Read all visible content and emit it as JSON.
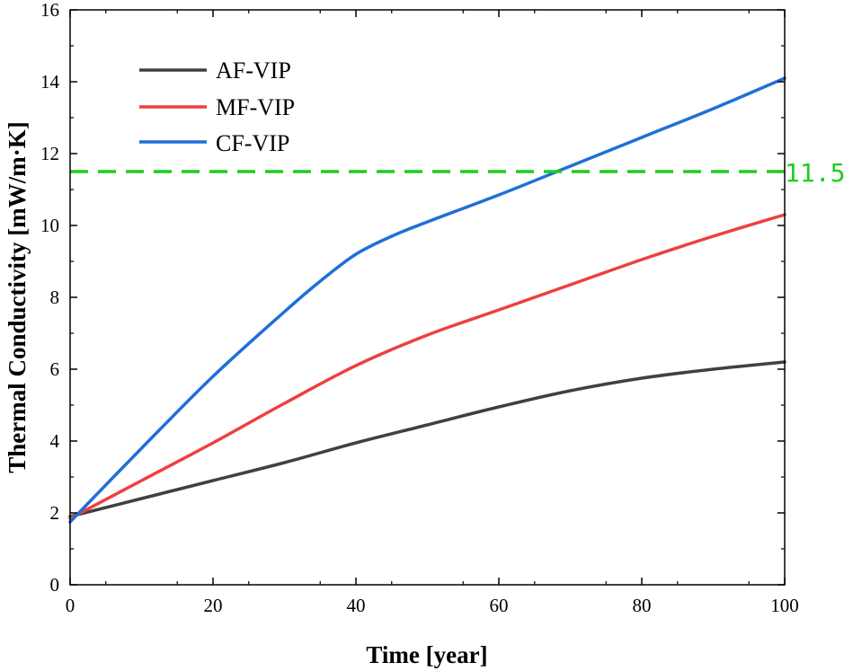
{
  "chart_data": {
    "type": "line",
    "title": "",
    "xlabel": "Time [year]",
    "ylabel": "Thermal Conductivity [mW/m·K]",
    "xlim": [
      0,
      100
    ],
    "ylim": [
      0,
      16
    ],
    "xticks": [
      0,
      20,
      40,
      60,
      80,
      100
    ],
    "yticks": [
      0,
      2,
      4,
      6,
      8,
      10,
      12,
      14,
      16
    ],
    "xtick_labels": [
      "0",
      "20",
      "40",
      "60",
      "80",
      "100"
    ],
    "ytick_labels": [
      "0",
      "2",
      "4",
      "6",
      "8",
      "10",
      "12",
      "14",
      "16"
    ],
    "grid": false,
    "legend": "top-left",
    "series": [
      {
        "name": "AF-VIP",
        "color": "#404040",
        "x": [
          0,
          10,
          20,
          30,
          40,
          50,
          60,
          70,
          80,
          90,
          100
        ],
        "y": [
          1.9,
          2.4,
          2.9,
          3.4,
          3.95,
          4.45,
          4.95,
          5.4,
          5.75,
          6.0,
          6.2
        ]
      },
      {
        "name": "MF-VIP",
        "color": "#ee3f3f",
        "x": [
          0,
          10,
          20,
          30,
          40,
          50,
          60,
          70,
          80,
          90,
          100
        ],
        "y": [
          1.85,
          2.9,
          3.95,
          5.05,
          6.1,
          6.95,
          7.65,
          8.35,
          9.05,
          9.7,
          10.3
        ]
      },
      {
        "name": "CF-VIP",
        "color": "#1f6fd8",
        "x": [
          0,
          10,
          20,
          30,
          35,
          40,
          45,
          50,
          60,
          70,
          80,
          90,
          100
        ],
        "y": [
          1.75,
          3.8,
          5.8,
          7.6,
          8.45,
          9.2,
          9.7,
          10.1,
          10.85,
          11.65,
          12.45,
          13.25,
          14.1
        ]
      }
    ],
    "reference_line": {
      "y": 11.5,
      "label": "11.5",
      "color": "#1fcc1f",
      "style": "dashed"
    }
  }
}
